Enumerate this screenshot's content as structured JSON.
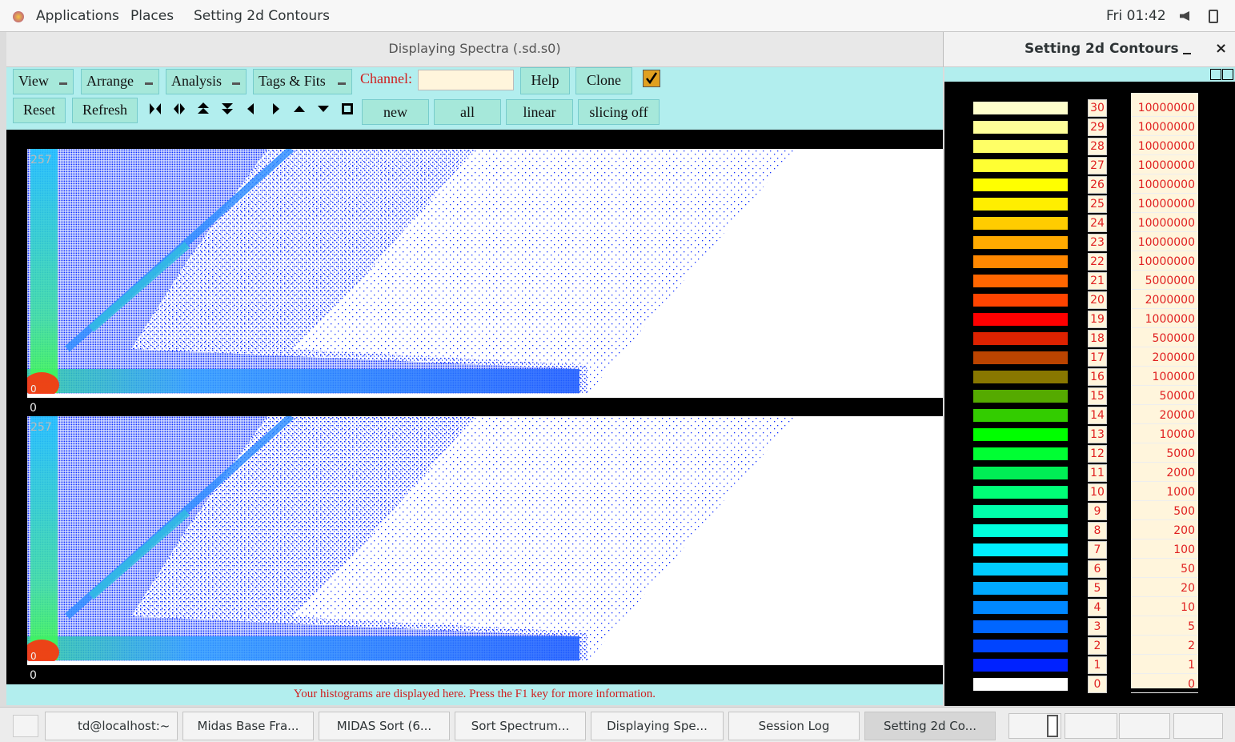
{
  "top_bar": {
    "menus": [
      "Applications",
      "Places",
      "Setting 2d Contours"
    ],
    "clock": "Fri 01:42"
  },
  "main_window": {
    "title": "Displaying Spectra (.sd.s0)",
    "menus": [
      "View",
      "Arrange",
      "Analysis",
      "Tags & Fits"
    ],
    "channel_label": "Channel:",
    "buttons_row1": [
      "Help",
      "Clone"
    ],
    "buttons_row2": [
      "Reset",
      "Refresh"
    ],
    "mode_buttons": [
      "new",
      "all",
      "linear",
      "slicing off"
    ],
    "plots": [
      {
        "y_max_label": 257,
        "y_min_label": 0,
        "x_min_label": 0
      },
      {
        "y_max_label": 257,
        "y_min_label": 0,
        "x_min_label": 0
      }
    ],
    "status": "Your histograms are displayed here. Press the F1 key for more information."
  },
  "contour_window": {
    "title": "Setting 2d Contours",
    "levels": [
      {
        "index": 30,
        "color": "#ffffcc",
        "value": 10000000
      },
      {
        "index": 29,
        "color": "#ffff99",
        "value": 10000000
      },
      {
        "index": 28,
        "color": "#ffff66",
        "value": 10000000
      },
      {
        "index": 27,
        "color": "#ffff33",
        "value": 10000000
      },
      {
        "index": 26,
        "color": "#ffff00",
        "value": 10000000
      },
      {
        "index": 25,
        "color": "#ffee00",
        "value": 10000000
      },
      {
        "index": 24,
        "color": "#ffcc00",
        "value": 10000000
      },
      {
        "index": 23,
        "color": "#ffaa00",
        "value": 10000000
      },
      {
        "index": 22,
        "color": "#ff8800",
        "value": 10000000
      },
      {
        "index": 21,
        "color": "#ff6600",
        "value": 5000000
      },
      {
        "index": 20,
        "color": "#ff4400",
        "value": 2000000
      },
      {
        "index": 19,
        "color": "#ff0000",
        "value": 1000000
      },
      {
        "index": 18,
        "color": "#dd2200",
        "value": 500000
      },
      {
        "index": 17,
        "color": "#bb4400",
        "value": 200000
      },
      {
        "index": 16,
        "color": "#887700",
        "value": 100000
      },
      {
        "index": 15,
        "color": "#55aa00",
        "value": 50000
      },
      {
        "index": 14,
        "color": "#33cc00",
        "value": 20000
      },
      {
        "index": 13,
        "color": "#00ff00",
        "value": 10000
      },
      {
        "index": 12,
        "color": "#00ff33",
        "value": 5000
      },
      {
        "index": 11,
        "color": "#00ee55",
        "value": 2000
      },
      {
        "index": 10,
        "color": "#00ff77",
        "value": 1000
      },
      {
        "index": 9,
        "color": "#00ffaa",
        "value": 500
      },
      {
        "index": 8,
        "color": "#00ffdd",
        "value": 200
      },
      {
        "index": 7,
        "color": "#00eeff",
        "value": 100
      },
      {
        "index": 6,
        "color": "#00ccff",
        "value": 50
      },
      {
        "index": 5,
        "color": "#00aaff",
        "value": 20
      },
      {
        "index": 4,
        "color": "#0088ff",
        "value": 10
      },
      {
        "index": 3,
        "color": "#0066ff",
        "value": 5
      },
      {
        "index": 2,
        "color": "#0044ff",
        "value": 2
      },
      {
        "index": 1,
        "color": "#0022ff",
        "value": 1
      },
      {
        "index": 0,
        "color": "#ffffff",
        "value": 0
      }
    ]
  },
  "taskbar": {
    "items": [
      "td@localhost:~",
      "Midas Base Fra...",
      "MIDAS Sort (6...",
      "Sort Spectrum...",
      "Displaying Spe...",
      "Session Log",
      "Setting 2d Co..."
    ]
  }
}
